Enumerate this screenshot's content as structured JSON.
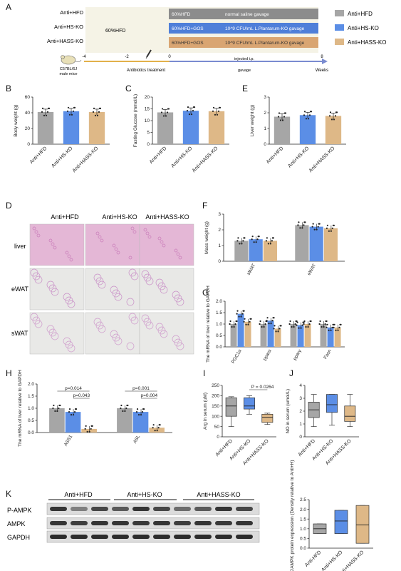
{
  "groups": [
    "Anti+HFD",
    "Anti+HS-KO",
    "Anti+HASS-KO"
  ],
  "colors": {
    "hfd": "#a6a6a6",
    "hs": "#5b8ee6",
    "hass": "#deb887",
    "bar_grey": "#9a9a9a"
  },
  "panel_A": {
    "letter": "A",
    "rows": [
      {
        "label": "Anti+HFD",
        "text": "60%HFD",
        "treatment": "normal saline gavage"
      },
      {
        "label": "Anti+HS-KO",
        "text": "60%HFD+GOS",
        "treatment": "10^9 CFU/mL L.Plantarum-KO gavage"
      },
      {
        "label": "Anti+HASS-KO",
        "text": "60%HFD+GOS",
        "treatment": "10^9 CFU/mL L.Plantarum-KO gavage"
      }
    ],
    "pre_label": "60%HFD",
    "ticks": [
      "-4",
      "-2",
      "0",
      "8"
    ],
    "mouse_label_1": "C57BL/6J",
    "mouse_label_2": "male mice",
    "antibiotics": "Antibiotics treatment",
    "injected": "injected i.p.",
    "gavage": "gavage",
    "weeks": "Weeks"
  },
  "legend": [
    "Anti+HFD",
    "Anti+HS-KO",
    "Anti+HASS-KO"
  ],
  "chart_data": [
    {
      "id": "B",
      "type": "bar",
      "categories": [
        "Anti+HFD",
        "Anti+HS-KO",
        "Anti+HASS-KO"
      ],
      "values": [
        41,
        42,
        41
      ],
      "ylabel": "Body weight (g)",
      "ylim": [
        0,
        60
      ],
      "yticks": [
        "0",
        "20",
        "40",
        "60"
      ]
    },
    {
      "id": "C",
      "type": "bar",
      "categories": [
        "Anti+HFD",
        "Anti+HS-KO",
        "Anti+HASS-KO"
      ],
      "values": [
        13.5,
        14.2,
        14.0
      ],
      "ylabel": "Fasting Glucose (mmol/L)",
      "ylim": [
        0,
        20
      ],
      "yticks": [
        "0",
        "5",
        "10",
        "15",
        "20"
      ]
    },
    {
      "id": "E",
      "type": "bar",
      "categories": [
        "Anti+HFD",
        "Anti+HS-KO",
        "Anti+HASS-KO"
      ],
      "values": [
        1.75,
        1.85,
        1.8
      ],
      "ylabel": "Liver weight (g)",
      "ylim": [
        0,
        3
      ],
      "yticks": [
        "0",
        "1",
        "2",
        "3"
      ]
    },
    {
      "id": "F",
      "type": "bar",
      "categories": [
        "sWAT",
        "eWAT"
      ],
      "series": [
        {
          "name": "Anti+HFD",
          "values": [
            1.3,
            2.3
          ]
        },
        {
          "name": "Anti+HS-KO",
          "values": [
            1.4,
            2.2
          ]
        },
        {
          "name": "Anti+HASS-KO",
          "values": [
            1.3,
            2.1
          ]
        }
      ],
      "ylabel": "Mass weight (g)",
      "ylim": [
        0,
        3
      ],
      "yticks": [
        "0",
        "1",
        "2",
        "3"
      ]
    },
    {
      "id": "G",
      "type": "bar",
      "categories": [
        "PGC1α",
        "pparα",
        "pparγ",
        "Fasn"
      ],
      "series": [
        {
          "name": "Anti+HFD",
          "values": [
            1.0,
            1.0,
            1.0,
            1.0
          ]
        },
        {
          "name": "Anti+HS-KO",
          "values": [
            1.45,
            1.15,
            0.95,
            0.85
          ]
        },
        {
          "name": "Anti+HASS-KO",
          "values": [
            1.1,
            0.8,
            1.0,
            0.85
          ]
        }
      ],
      "ylabel": "The mRNA of liver relative to GAPDH",
      "ylim": [
        0,
        2
      ],
      "yticks": [
        "0.0",
        "0.5",
        "1.0",
        "1.5",
        "2.0"
      ]
    },
    {
      "id": "H",
      "type": "bar",
      "categories": [
        "ASS1",
        "ASL"
      ],
      "series": [
        {
          "name": "Anti+HFD",
          "values": [
            1.0,
            1.0
          ]
        },
        {
          "name": "Anti+HS-KO",
          "values": [
            0.85,
            0.85
          ]
        },
        {
          "name": "Anti+HASS-KO",
          "values": [
            0.15,
            0.2
          ]
        }
      ],
      "ylabel": "The mRNA of liver relative to GAPDH",
      "ylim": [
        0,
        2.0
      ],
      "yticks": [
        "0.0",
        "0.5",
        "1.0",
        "1.5",
        "2.0"
      ],
      "annotations": [
        "p=0.014",
        "p=0.043",
        "p=0.001",
        "p=0.004"
      ]
    },
    {
      "id": "I",
      "type": "box",
      "categories": [
        "Anti+HFD",
        "Anti+HS-KO",
        "Anti+HASS-KO"
      ],
      "boxes": [
        {
          "min": 50,
          "q1": 100,
          "median": 150,
          "q3": 190,
          "max": 195
        },
        {
          "min": 110,
          "q1": 135,
          "median": 150,
          "q3": 190,
          "max": 200
        },
        {
          "min": 60,
          "q1": 70,
          "median": 95,
          "q3": 110,
          "max": 115
        }
      ],
      "ylabel": "Arg in serum (uM)",
      "ylim": [
        0,
        250
      ],
      "yticks": [
        "0",
        "50",
        "100",
        "150",
        "200",
        "250"
      ],
      "annotation": "P = 0.0264"
    },
    {
      "id": "J",
      "type": "box",
      "categories": [
        "Anti+HFD",
        "Anti+HS-KO",
        "Anti+HASS-KO"
      ],
      "boxes": [
        {
          "min": 0.8,
          "q1": 1.5,
          "median": 2.1,
          "q3": 2.7,
          "max": 3.3
        },
        {
          "min": 0.9,
          "q1": 1.9,
          "median": 2.5,
          "q3": 3.3,
          "max": 3.3
        },
        {
          "min": 0.8,
          "q1": 1.2,
          "median": 1.6,
          "q3": 2.4,
          "max": 3.3
        }
      ],
      "ylabel": "NO in serum (umol/L)",
      "ylim": [
        0,
        4
      ],
      "yticks": [
        "0",
        "1",
        "2",
        "3",
        "4"
      ]
    },
    {
      "id": "K_chart",
      "type": "box",
      "categories": [
        "Anti-HFD",
        "Anti+HS-KO",
        "Anti+HASS-KO"
      ],
      "boxes": [
        {
          "min": 0.75,
          "q1": 0.75,
          "median": 1.0,
          "q3": 1.25,
          "max": 1.25
        },
        {
          "min": 0.75,
          "q1": 0.75,
          "median": 1.4,
          "q3": 1.95,
          "max": 1.95
        },
        {
          "min": 0.25,
          "q1": 0.25,
          "median": 1.2,
          "q3": 2.2,
          "max": 2.2
        }
      ],
      "ylabel": "P-AMPK/AMPK protein expression (Density relative to Anti+H)",
      "ylim": [
        0,
        2.5
      ],
      "yticks": [
        "0.0",
        "0.5",
        "1.0",
        "1.5",
        "2.0",
        "2.5"
      ]
    }
  ],
  "panel_D": {
    "letter": "D",
    "cols": [
      "Anti+HFD",
      "Anti+HS-KO",
      "Anti+HASS-KO"
    ],
    "rows": [
      "liver",
      "eWAT",
      "sWAT"
    ]
  },
  "panel_K": {
    "letter": "K",
    "groups": [
      "Anti+HFD",
      "Anti+HS-KO",
      "Anti+HASS-KO"
    ],
    "rows": [
      "P-AMPK",
      "AMPK",
      "GAPDH"
    ]
  },
  "letters": {
    "B": "B",
    "C": "C",
    "E": "E",
    "F": "F",
    "G": "G",
    "H": "H",
    "I": "I",
    "J": "J"
  }
}
